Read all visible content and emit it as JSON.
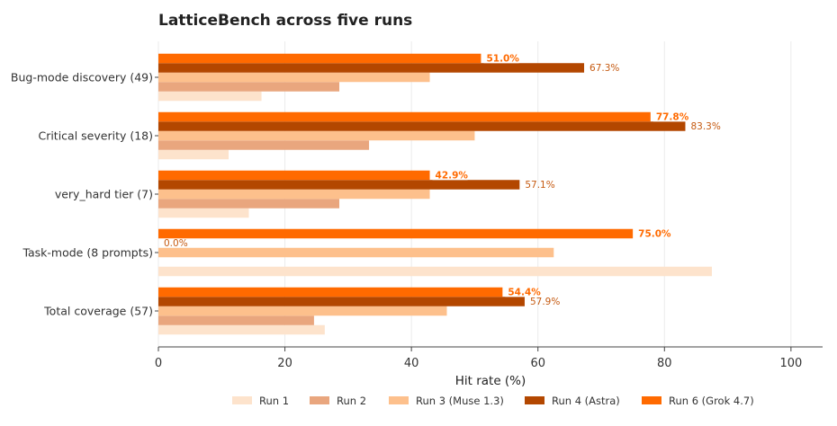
{
  "chart_data": {
    "type": "bar",
    "orientation": "horizontal",
    "title": "LatticeBench across five runs",
    "xlabel": "Hit rate (%)",
    "ylabel": "",
    "xlim": [
      0,
      105
    ],
    "x_ticks": [
      "0",
      "20",
      "40",
      "60",
      "80",
      "100"
    ],
    "grid": "vertical",
    "legend_position": "bottom",
    "categories": [
      "Bug-mode discovery (49)",
      "Critical severity (18)",
      "very_hard tier (7)",
      "Task-mode (8 prompts)",
      "Total coverage (57)"
    ],
    "series": [
      {
        "name": "Run 1",
        "color": "#fde3cc",
        "values": [
          16.3,
          11.1,
          14.3,
          87.5,
          26.3
        ],
        "labels": [
          "",
          "",
          "",
          "",
          ""
        ]
      },
      {
        "name": "Run 2",
        "color": "#e9a67e",
        "values": [
          28.6,
          33.3,
          28.6,
          null,
          24.6
        ],
        "labels": [
          "",
          "",
          "",
          "",
          ""
        ]
      },
      {
        "name": "Run 3 (Muse 1.3)",
        "color": "#fdc08c",
        "values": [
          42.9,
          50.0,
          42.9,
          62.5,
          45.6
        ],
        "labels": [
          "",
          "",
          "",
          "",
          ""
        ]
      },
      {
        "name": "Run 4 (Astra)",
        "color": "#b34700",
        "values": [
          67.3,
          83.3,
          57.1,
          0.0,
          57.9
        ],
        "labels": [
          "67.3%",
          "83.3%",
          "57.1%",
          "0.0%",
          "57.9%"
        ]
      },
      {
        "name": "Run 6 (Grok 4.7)",
        "color": "#ff6a00",
        "values": [
          51.0,
          77.8,
          42.9,
          75.0,
          54.4
        ],
        "labels": [
          "51.0%",
          "77.8%",
          "42.9%",
          "75.0%",
          "54.4%"
        ]
      }
    ]
  }
}
